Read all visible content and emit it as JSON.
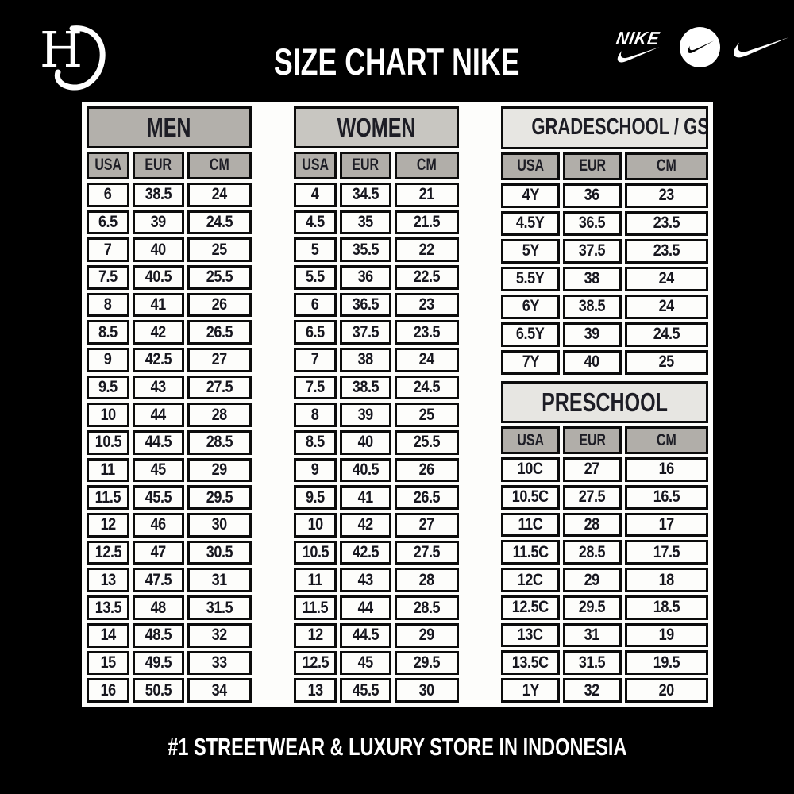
{
  "header": {
    "monogram": "HG",
    "title": "SIZE CHART NIKE",
    "nike_wordmark_text": "NIKE"
  },
  "footer": {
    "tagline": "#1 STREETWEAR & LUXURY STORE IN INDONESIA"
  },
  "colors": {
    "background": "#000000",
    "panel": "#fdfdfb",
    "banner_men": "#b3b0ab",
    "banner_women": "#c8c6c1",
    "banner_kids": "#e7e6e2",
    "column_header": "#b1aea9",
    "cell": "#fdfdfb",
    "border": "#0c0c0c",
    "text_dark": "#16161e",
    "text_light": "#ffffff"
  },
  "tables": {
    "men": {
      "title": "MEN",
      "columns": [
        "USA",
        "EUR",
        "CM"
      ],
      "rows": [
        [
          "6",
          "38.5",
          "24"
        ],
        [
          "6.5",
          "39",
          "24.5"
        ],
        [
          "7",
          "40",
          "25"
        ],
        [
          "7.5",
          "40.5",
          "25.5"
        ],
        [
          "8",
          "41",
          "26"
        ],
        [
          "8.5",
          "42",
          "26.5"
        ],
        [
          "9",
          "42.5",
          "27"
        ],
        [
          "9.5",
          "43",
          "27.5"
        ],
        [
          "10",
          "44",
          "28"
        ],
        [
          "10.5",
          "44.5",
          "28.5"
        ],
        [
          "11",
          "45",
          "29"
        ],
        [
          "11.5",
          "45.5",
          "29.5"
        ],
        [
          "12",
          "46",
          "30"
        ],
        [
          "12.5",
          "47",
          "30.5"
        ],
        [
          "13",
          "47.5",
          "31"
        ],
        [
          "13.5",
          "48",
          "31.5"
        ],
        [
          "14",
          "48.5",
          "32"
        ],
        [
          "15",
          "49.5",
          "33"
        ],
        [
          "16",
          "50.5",
          "34"
        ]
      ]
    },
    "women": {
      "title": "WOMEN",
      "columns": [
        "USA",
        "EUR",
        "CM"
      ],
      "rows": [
        [
          "4",
          "34.5",
          "21"
        ],
        [
          "4.5",
          "35",
          "21.5"
        ],
        [
          "5",
          "35.5",
          "22"
        ],
        [
          "5.5",
          "36",
          "22.5"
        ],
        [
          "6",
          "36.5",
          "23"
        ],
        [
          "6.5",
          "37.5",
          "23.5"
        ],
        [
          "7",
          "38",
          "24"
        ],
        [
          "7.5",
          "38.5",
          "24.5"
        ],
        [
          "8",
          "39",
          "25"
        ],
        [
          "8.5",
          "40",
          "25.5"
        ],
        [
          "9",
          "40.5",
          "26"
        ],
        [
          "9.5",
          "41",
          "26.5"
        ],
        [
          "10",
          "42",
          "27"
        ],
        [
          "10.5",
          "42.5",
          "27.5"
        ],
        [
          "11",
          "43",
          "28"
        ],
        [
          "11.5",
          "44",
          "28.5"
        ],
        [
          "12",
          "44.5",
          "29"
        ],
        [
          "12.5",
          "45",
          "29.5"
        ],
        [
          "13",
          "45.5",
          "30"
        ]
      ]
    },
    "gradeschool": {
      "title": "GRADESCHOOL / GS",
      "columns": [
        "USA",
        "EUR",
        "CM"
      ],
      "rows": [
        [
          "4Y",
          "36",
          "23"
        ],
        [
          "4.5Y",
          "36.5",
          "23.5"
        ],
        [
          "5Y",
          "37.5",
          "23.5"
        ],
        [
          "5.5Y",
          "38",
          "24"
        ],
        [
          "6Y",
          "38.5",
          "24"
        ],
        [
          "6.5Y",
          "39",
          "24.5"
        ],
        [
          "7Y",
          "40",
          "25"
        ]
      ]
    },
    "preschool": {
      "title": "PRESCHOOL",
      "columns": [
        "USA",
        "EUR",
        "CM"
      ],
      "rows": [
        [
          "10C",
          "27",
          "16"
        ],
        [
          "10.5C",
          "27.5",
          "16.5"
        ],
        [
          "11C",
          "28",
          "17"
        ],
        [
          "11.5C",
          "28.5",
          "17.5"
        ],
        [
          "12C",
          "29",
          "18"
        ],
        [
          "12.5C",
          "29.5",
          "18.5"
        ],
        [
          "13C",
          "31",
          "19"
        ],
        [
          "13.5C",
          "31.5",
          "19.5"
        ],
        [
          "1Y",
          "32",
          "20"
        ]
      ]
    }
  }
}
